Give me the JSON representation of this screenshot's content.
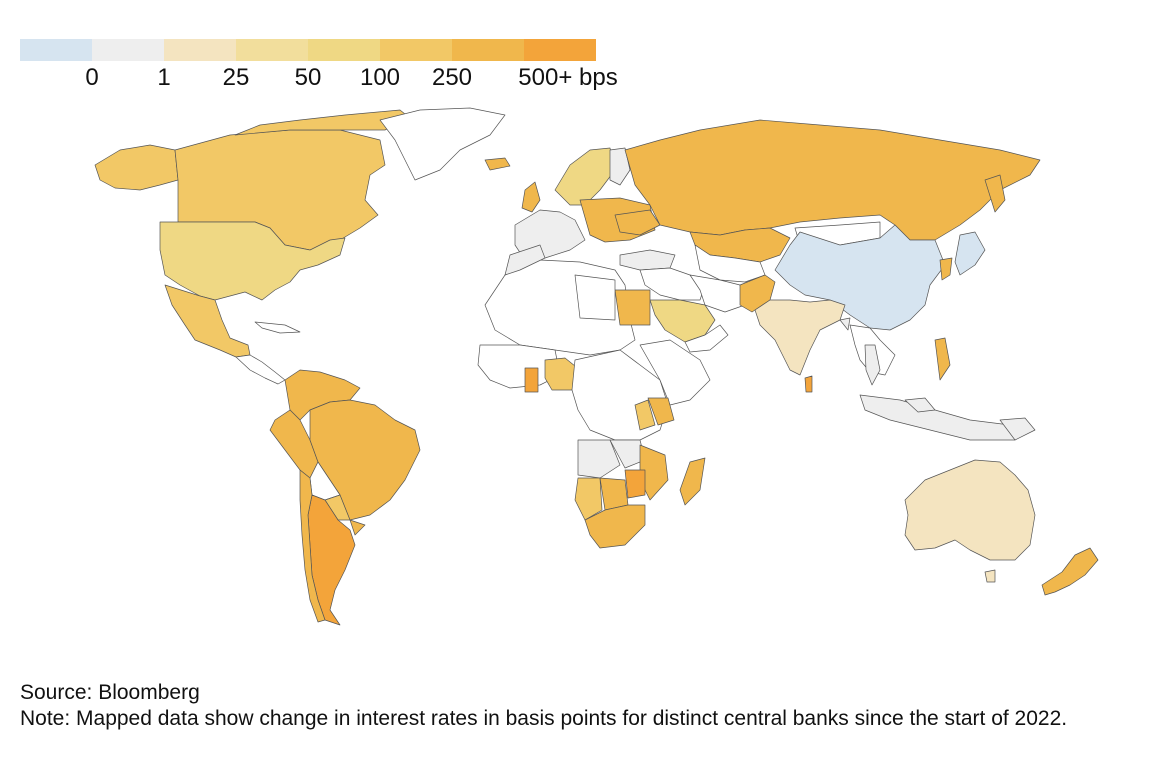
{
  "legend": {
    "colors": [
      "#d6e4f0",
      "#eeeeee",
      "#f4e4c0",
      "#f2de9c",
      "#efd884",
      "#f2c866",
      "#f0b74c",
      "#f3a43a"
    ],
    "labels": [
      "0",
      "1",
      "25",
      "50",
      "100",
      "250",
      "500+ bps"
    ]
  },
  "map_colors": {
    "no_data": "#ffffff",
    "zero": "#d6e4f0",
    "one_to_25": "#eeeeee",
    "25_to_50": "#f4e4c0",
    "50_to_100": "#f2de9c",
    "100_to_250": "#efd884",
    "250_to_500": "#f2c866",
    "500_plus": "#f3a43a",
    "high": "#f0b74c"
  },
  "footer": {
    "source": "Source: Bloomberg",
    "note": "Note: Mapped data show change in interest rates in basis points for distinct central banks since the start of 2022."
  }
}
